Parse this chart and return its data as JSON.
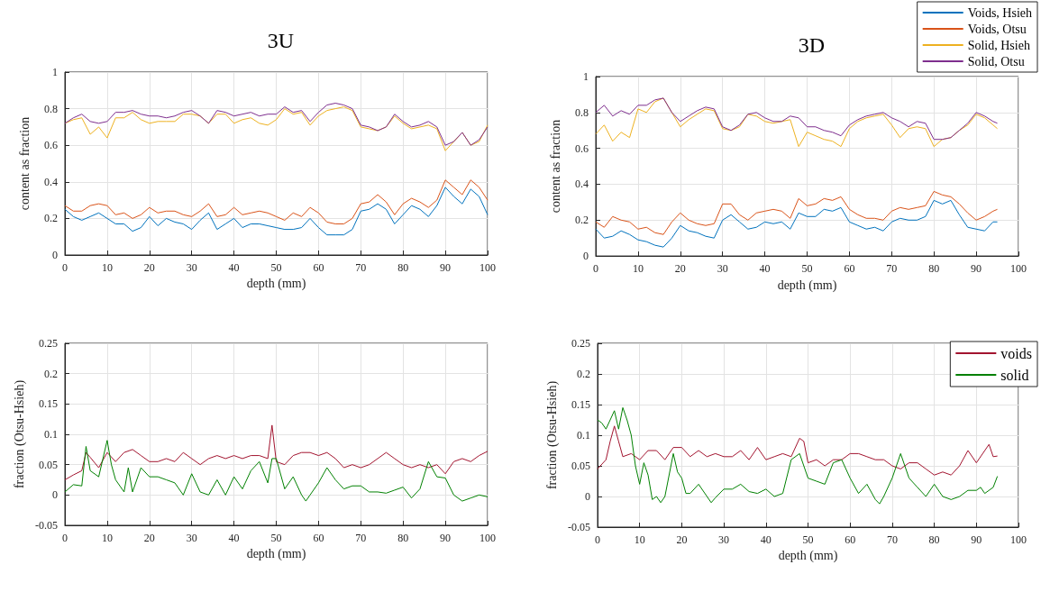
{
  "chart_data": [
    {
      "type": "line",
      "title": "3U",
      "xlabel": "depth (mm)",
      "ylabel": "content as fraction",
      "xlim": [
        0,
        100
      ],
      "xticks": [
        0,
        10,
        20,
        30,
        40,
        50,
        60,
        70,
        80,
        90,
        100
      ],
      "ylim": [
        0,
        1
      ],
      "yticks": [
        0,
        0.2,
        0.4,
        0.6,
        0.8,
        1
      ],
      "grid": true,
      "x": [
        0,
        2,
        4,
        6,
        8,
        10,
        12,
        14,
        16,
        18,
        20,
        22,
        24,
        26,
        28,
        30,
        32,
        34,
        36,
        38,
        40,
        42,
        44,
        46,
        48,
        50,
        52,
        54,
        56,
        58,
        60,
        62,
        64,
        66,
        68,
        70,
        72,
        74,
        76,
        78,
        80,
        82,
        84,
        86,
        88,
        90,
        92,
        94,
        96,
        98,
        100
      ],
      "series": [
        {
          "color": "#0072bd",
          "values": [
            0.25,
            0.21,
            0.19,
            0.21,
            0.23,
            0.2,
            0.17,
            0.17,
            0.13,
            0.15,
            0.21,
            0.16,
            0.2,
            0.18,
            0.17,
            0.14,
            0.19,
            0.23,
            0.14,
            0.17,
            0.2,
            0.15,
            0.17,
            0.17,
            0.16,
            0.15,
            0.14,
            0.14,
            0.15,
            0.2,
            0.15,
            0.11,
            0.11,
            0.11,
            0.14,
            0.24,
            0.25,
            0.28,
            0.25,
            0.17,
            0.22,
            0.27,
            0.25,
            0.21,
            0.27,
            0.37,
            0.32,
            0.28,
            0.36,
            0.32,
            0.22
          ]
        },
        {
          "color": "#d95319",
          "values": [
            0.27,
            0.24,
            0.24,
            0.27,
            0.28,
            0.27,
            0.22,
            0.23,
            0.2,
            0.22,
            0.26,
            0.23,
            0.24,
            0.24,
            0.22,
            0.21,
            0.24,
            0.28,
            0.21,
            0.22,
            0.26,
            0.22,
            0.23,
            0.24,
            0.23,
            0.21,
            0.19,
            0.23,
            0.21,
            0.26,
            0.23,
            0.18,
            0.17,
            0.17,
            0.2,
            0.28,
            0.29,
            0.33,
            0.29,
            0.22,
            0.28,
            0.31,
            0.29,
            0.26,
            0.3,
            0.41,
            0.37,
            0.33,
            0.41,
            0.37,
            0.3
          ]
        },
        {
          "color": "#edb120",
          "values": [
            0.72,
            0.74,
            0.75,
            0.66,
            0.7,
            0.64,
            0.75,
            0.75,
            0.78,
            0.74,
            0.72,
            0.73,
            0.73,
            0.73,
            0.77,
            0.77,
            0.76,
            0.72,
            0.77,
            0.77,
            0.72,
            0.74,
            0.75,
            0.72,
            0.71,
            0.74,
            0.8,
            0.77,
            0.78,
            0.71,
            0.76,
            0.79,
            0.8,
            0.81,
            0.79,
            0.7,
            0.69,
            0.68,
            0.7,
            0.76,
            0.72,
            0.69,
            0.7,
            0.71,
            0.69,
            0.57,
            0.62,
            0.67,
            0.6,
            0.62,
            0.71
          ]
        },
        {
          "color": "#7e2f8e",
          "values": [
            0.72,
            0.75,
            0.77,
            0.73,
            0.72,
            0.73,
            0.78,
            0.78,
            0.79,
            0.77,
            0.76,
            0.76,
            0.75,
            0.76,
            0.78,
            0.79,
            0.76,
            0.72,
            0.79,
            0.78,
            0.76,
            0.77,
            0.78,
            0.76,
            0.77,
            0.77,
            0.81,
            0.78,
            0.79,
            0.73,
            0.78,
            0.82,
            0.83,
            0.82,
            0.8,
            0.71,
            0.7,
            0.68,
            0.7,
            0.77,
            0.73,
            0.7,
            0.71,
            0.73,
            0.7,
            0.6,
            0.62,
            0.67,
            0.6,
            0.63,
            0.7
          ]
        }
      ]
    },
    {
      "type": "line",
      "title": "3D",
      "xlabel": "depth (mm)",
      "ylabel": "content as fraction",
      "xlim": [
        0,
        100
      ],
      "xticks": [
        0,
        10,
        20,
        30,
        40,
        50,
        60,
        70,
        80,
        90,
        100
      ],
      "ylim": [
        0,
        1
      ],
      "yticks": [
        0,
        0.2,
        0.4,
        0.6,
        0.8,
        1
      ],
      "grid": true,
      "legend": "top right",
      "x": [
        0,
        2,
        4,
        6,
        8,
        10,
        12,
        14,
        16,
        18,
        20,
        22,
        24,
        26,
        28,
        30,
        32,
        34,
        36,
        38,
        40,
        42,
        44,
        46,
        48,
        50,
        52,
        54,
        56,
        58,
        60,
        62,
        64,
        66,
        68,
        70,
        72,
        74,
        76,
        78,
        80,
        82,
        84,
        86,
        88,
        90,
        92,
        94,
        95
      ],
      "series": [
        {
          "name": "Voids, Hsieh",
          "color": "#0072bd",
          "values": [
            0.15,
            0.1,
            0.11,
            0.14,
            0.12,
            0.09,
            0.08,
            0.06,
            0.05,
            0.1,
            0.17,
            0.14,
            0.13,
            0.11,
            0.1,
            0.2,
            0.23,
            0.19,
            0.15,
            0.16,
            0.19,
            0.18,
            0.19,
            0.15,
            0.24,
            0.22,
            0.22,
            0.26,
            0.25,
            0.27,
            0.19,
            0.17,
            0.15,
            0.16,
            0.14,
            0.19,
            0.21,
            0.2,
            0.2,
            0.22,
            0.31,
            0.29,
            0.31,
            0.23,
            0.16,
            0.15,
            0.14,
            0.19,
            0.19
          ]
        },
        {
          "name": "Voids, Otsu",
          "color": "#d95319",
          "values": [
            0.19,
            0.16,
            0.22,
            0.2,
            0.19,
            0.15,
            0.16,
            0.13,
            0.12,
            0.19,
            0.24,
            0.2,
            0.18,
            0.17,
            0.18,
            0.29,
            0.29,
            0.23,
            0.2,
            0.24,
            0.25,
            0.26,
            0.25,
            0.21,
            0.32,
            0.28,
            0.29,
            0.32,
            0.31,
            0.33,
            0.26,
            0.23,
            0.21,
            0.21,
            0.2,
            0.25,
            0.27,
            0.26,
            0.27,
            0.28,
            0.36,
            0.34,
            0.33,
            0.29,
            0.24,
            0.2,
            0.22,
            0.25,
            0.26
          ]
        },
        {
          "name": "Solid, Hsieh",
          "color": "#edb120",
          "values": [
            0.68,
            0.73,
            0.64,
            0.69,
            0.66,
            0.82,
            0.8,
            0.86,
            0.88,
            0.8,
            0.72,
            0.76,
            0.79,
            0.82,
            0.81,
            0.71,
            0.7,
            0.72,
            0.79,
            0.78,
            0.75,
            0.74,
            0.75,
            0.76,
            0.61,
            0.69,
            0.67,
            0.65,
            0.64,
            0.61,
            0.71,
            0.75,
            0.77,
            0.78,
            0.79,
            0.73,
            0.66,
            0.71,
            0.72,
            0.71,
            0.61,
            0.65,
            0.66,
            0.7,
            0.73,
            0.79,
            0.77,
            0.73,
            0.71
          ]
        },
        {
          "name": "Solid, Otsu",
          "color": "#7e2f8e",
          "values": [
            0.8,
            0.84,
            0.78,
            0.81,
            0.79,
            0.84,
            0.84,
            0.87,
            0.88,
            0.8,
            0.75,
            0.78,
            0.81,
            0.83,
            0.82,
            0.72,
            0.7,
            0.73,
            0.79,
            0.8,
            0.77,
            0.75,
            0.75,
            0.78,
            0.77,
            0.72,
            0.72,
            0.7,
            0.69,
            0.67,
            0.73,
            0.76,
            0.78,
            0.79,
            0.8,
            0.77,
            0.75,
            0.72,
            0.75,
            0.74,
            0.65,
            0.65,
            0.66,
            0.7,
            0.74,
            0.8,
            0.78,
            0.75,
            0.74
          ]
        }
      ]
    },
    {
      "type": "line",
      "xlabel": "depth (mm)",
      "ylabel": "fraction (Otsu-Hsieh)",
      "xlim": [
        0,
        100
      ],
      "xticks": [
        0,
        10,
        20,
        30,
        40,
        50,
        60,
        70,
        80,
        90,
        100
      ],
      "ylim": [
        -0.05,
        0.25
      ],
      "yticks": [
        -0.05,
        0,
        0.05,
        0.1,
        0.15,
        0.2,
        0.25
      ],
      "grid": true,
      "series": [
        {
          "color": "#a2142f",
          "x": [
            0,
            2,
            4,
            5,
            6,
            8,
            10,
            12,
            14,
            16,
            18,
            20,
            22,
            24,
            26,
            28,
            30,
            32,
            34,
            36,
            38,
            40,
            42,
            44,
            46,
            48,
            49,
            50,
            52,
            54,
            56,
            58,
            60,
            62,
            64,
            66,
            68,
            70,
            72,
            74,
            76,
            78,
            80,
            82,
            84,
            86,
            88,
            90,
            92,
            94,
            96,
            98,
            100
          ],
          "values": [
            0.025,
            0.033,
            0.04,
            0.07,
            0.062,
            0.045,
            0.07,
            0.055,
            0.07,
            0.075,
            0.065,
            0.055,
            0.055,
            0.06,
            0.055,
            0.07,
            0.06,
            0.05,
            0.06,
            0.065,
            0.06,
            0.065,
            0.06,
            0.065,
            0.065,
            0.06,
            0.115,
            0.055,
            0.05,
            0.065,
            0.07,
            0.07,
            0.065,
            0.07,
            0.06,
            0.045,
            0.05,
            0.045,
            0.05,
            0.06,
            0.07,
            0.06,
            0.05,
            0.045,
            0.05,
            0.045,
            0.05,
            0.035,
            0.055,
            0.06,
            0.055,
            0.065,
            0.072
          ]
        },
        {
          "color": "#008000",
          "x": [
            0,
            2,
            4,
            5,
            6,
            8,
            10,
            11,
            12,
            14,
            15,
            16,
            18,
            20,
            22,
            24,
            26,
            28,
            30,
            32,
            34,
            36,
            38,
            40,
            42,
            44,
            46,
            48,
            49,
            50,
            52,
            54,
            56,
            57,
            58,
            60,
            62,
            64,
            66,
            68,
            70,
            72,
            74,
            76,
            78,
            80,
            82,
            84,
            86,
            88,
            90,
            92,
            94,
            96,
            98,
            100
          ],
          "values": [
            0.005,
            0.017,
            0.015,
            0.08,
            0.04,
            0.03,
            0.09,
            0.05,
            0.025,
            0.005,
            0.045,
            0.005,
            0.045,
            0.03,
            0.03,
            0.025,
            0.02,
            0.0,
            0.035,
            0.005,
            0.0,
            0.025,
            0.0,
            0.03,
            0.01,
            0.04,
            0.055,
            0.02,
            0.06,
            0.06,
            0.01,
            0.03,
            0.0,
            -0.01,
            0.0,
            0.02,
            0.045,
            0.025,
            0.01,
            0.015,
            0.015,
            0.005,
            0.005,
            0.003,
            0.008,
            0.013,
            -0.005,
            0.01,
            0.055,
            0.03,
            0.028,
            0.0,
            -0.01,
            -0.005,
            0.0,
            -0.003
          ]
        }
      ]
    },
    {
      "type": "line",
      "xlabel": "depth (mm)",
      "ylabel": "fraction (Otsu-Hsieh)",
      "xlim": [
        0,
        100
      ],
      "xticks": [
        0,
        10,
        20,
        30,
        40,
        50,
        60,
        70,
        80,
        90,
        100
      ],
      "ylim": [
        -0.05,
        0.25
      ],
      "yticks": [
        -0.05,
        0,
        0.05,
        0.1,
        0.15,
        0.2,
        0.25
      ],
      "grid": true,
      "legend": "top right",
      "series": [
        {
          "name": "voids",
          "color": "#a2142f",
          "x": [
            0,
            2,
            3,
            4,
            5,
            6,
            8,
            10,
            12,
            14,
            16,
            18,
            20,
            22,
            24,
            26,
            28,
            30,
            32,
            34,
            36,
            38,
            40,
            42,
            44,
            46,
            48,
            49,
            50,
            52,
            54,
            56,
            58,
            60,
            62,
            64,
            66,
            68,
            70,
            72,
            74,
            76,
            78,
            80,
            82,
            84,
            86,
            88,
            90,
            92,
            93,
            94,
            95
          ],
          "values": [
            0.045,
            0.06,
            0.09,
            0.115,
            0.09,
            0.065,
            0.07,
            0.06,
            0.075,
            0.075,
            0.06,
            0.08,
            0.08,
            0.065,
            0.075,
            0.065,
            0.07,
            0.065,
            0.065,
            0.075,
            0.06,
            0.08,
            0.06,
            0.065,
            0.07,
            0.065,
            0.095,
            0.09,
            0.055,
            0.06,
            0.05,
            0.06,
            0.06,
            0.07,
            0.07,
            0.065,
            0.06,
            0.06,
            0.05,
            0.045,
            0.055,
            0.055,
            0.045,
            0.035,
            0.04,
            0.035,
            0.05,
            0.075,
            0.055,
            0.075,
            0.085,
            0.065,
            0.066
          ]
        },
        {
          "name": "solid",
          "color": "#008000",
          "x": [
            0,
            1,
            2,
            3,
            4,
            5,
            6,
            7,
            8,
            9,
            10,
            11,
            12,
            13,
            14,
            15,
            16,
            18,
            19,
            20,
            21,
            22,
            24,
            26,
            27,
            28,
            30,
            32,
            34,
            36,
            38,
            40,
            42,
            44,
            46,
            48,
            50,
            52,
            54,
            56,
            58,
            60,
            62,
            64,
            66,
            67,
            68,
            70,
            71,
            72,
            74,
            76,
            78,
            80,
            82,
            84,
            86,
            88,
            90,
            91,
            92,
            94,
            95
          ],
          "values": [
            0.125,
            0.12,
            0.11,
            0.125,
            0.14,
            0.11,
            0.145,
            0.125,
            0.1,
            0.05,
            0.02,
            0.055,
            0.035,
            -0.005,
            0.0,
            -0.01,
            0.0,
            0.07,
            0.04,
            0.03,
            0.005,
            0.005,
            0.02,
            0.0,
            -0.01,
            -0.002,
            0.012,
            0.012,
            0.02,
            0.008,
            0.005,
            0.012,
            0.0,
            0.005,
            0.06,
            0.07,
            0.03,
            0.025,
            0.02,
            0.055,
            0.06,
            0.03,
            0.005,
            0.02,
            -0.005,
            -0.012,
            0.0,
            0.03,
            0.05,
            0.07,
            0.03,
            0.015,
            0.0,
            0.02,
            0.0,
            -0.005,
            0.0,
            0.01,
            0.01,
            0.015,
            0.005,
            0.015,
            0.033
          ]
        }
      ]
    }
  ]
}
